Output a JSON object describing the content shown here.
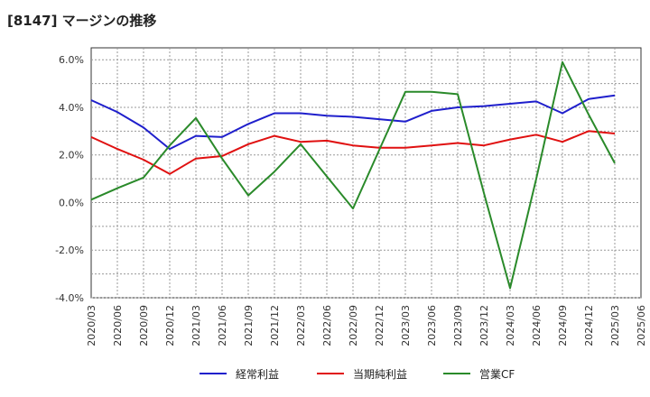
{
  "chart_data": {
    "type": "line",
    "title": "[8147]  マージンの推移",
    "xlabel": "",
    "ylabel": "",
    "ylim": [
      -4.0,
      6.5
    ],
    "yticks": [
      -4.0,
      -2.0,
      0.0,
      2.0,
      4.0,
      6.0
    ],
    "ytick_labels": [
      "-4.0%",
      "-2.0%",
      "0.0%",
      "2.0%",
      "4.0%",
      "6.0%"
    ],
    "grid": true,
    "legend_position": "bottom",
    "x": [
      "2020/03",
      "2020/06",
      "2020/09",
      "2020/12",
      "2021/03",
      "2021/06",
      "2021/09",
      "2021/12",
      "2022/03",
      "2022/06",
      "2022/09",
      "2022/12",
      "2023/03",
      "2023/06",
      "2023/09",
      "2023/12",
      "2024/03",
      "2024/06",
      "2024/09",
      "2024/12",
      "2025/03",
      "2025/06"
    ],
    "series": [
      {
        "name": "経常利益",
        "color": "#1f1fcc",
        "values": [
          4.3,
          3.8,
          3.15,
          2.25,
          2.8,
          2.75,
          3.3,
          3.75,
          3.75,
          3.65,
          3.6,
          3.5,
          3.4,
          3.85,
          4.0,
          4.05,
          4.15,
          4.25,
          3.75,
          4.35,
          4.5,
          null
        ]
      },
      {
        "name": "当期純利益",
        "color": "#e01010",
        "values": [
          2.75,
          2.25,
          1.8,
          1.2,
          1.85,
          1.95,
          2.45,
          2.8,
          2.55,
          2.6,
          2.4,
          2.3,
          2.3,
          2.4,
          2.5,
          2.4,
          2.65,
          2.85,
          2.55,
          3.0,
          2.9,
          null
        ]
      },
      {
        "name": "営業CF",
        "color": "#2a8a2a",
        "values": [
          0.12,
          0.6,
          1.05,
          2.4,
          3.55,
          1.85,
          0.3,
          1.3,
          2.45,
          1.1,
          -0.25,
          2.2,
          4.65,
          4.65,
          4.55,
          0.4,
          -3.6,
          1.0,
          5.9,
          3.7,
          1.65,
          null
        ]
      }
    ]
  }
}
